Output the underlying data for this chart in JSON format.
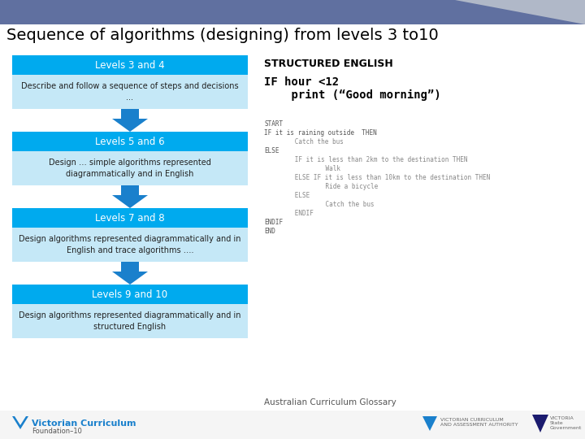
{
  "title": "Sequence of algorithms (designing) from levels 3 to10",
  "title_color": "#000000",
  "title_fontsize": 14,
  "header_bg": "#6070a0",
  "bg_color": "#ffffff",
  "levels": [
    {
      "header": "Levels 3 and 4",
      "header_bg": "#00aaee",
      "body_bg": "#c5e8f7",
      "body_text": "Describe and follow a sequence of steps and decisions\n..."
    },
    {
      "header": "Levels 5 and 6",
      "header_bg": "#00aaee",
      "body_bg": "#c5e8f7",
      "body_text": "Design … simple algorithms represented\ndiagrammatically and in English"
    },
    {
      "header": "Levels 7 and 8",
      "header_bg": "#00aaee",
      "body_bg": "#c5e8f7",
      "body_text": "Design algorithms represented diagrammatically and in\nEnglish and trace algorithms …."
    },
    {
      "header": "Levels 9 and 10",
      "header_bg": "#00aaee",
      "body_bg": "#c5e8f7",
      "body_text": "Design algorithms represented diagrammatically and in\nstructured English"
    }
  ],
  "arrow_color": "#1a80cc",
  "right_panel": {
    "heading": "STRUCTURED ENGLISH",
    "heading_fontsize": 9,
    "code_line1": "IF hour <12",
    "code_line2": "    print (“Good morning”)",
    "code_fontsize": 10,
    "pseudo_lines": [
      [
        "START",
        0
      ],
      [
        "IF it is raining outside  THEN",
        0
      ],
      [
        "      Catch the bus",
        1
      ],
      [
        "ELSE",
        0
      ],
      [
        "      IF it is less than 2km to the destination THEN",
        1
      ],
      [
        "            Walk",
        2
      ],
      [
        "      ELSE IF it is less than 10km to the destination THEN",
        1
      ],
      [
        "            Ride a bicycle",
        2
      ],
      [
        "      ELSE",
        1
      ],
      [
        "            Catch the bus",
        2
      ],
      [
        "      ENDIF",
        1
      ],
      [
        "ENDIF",
        0
      ],
      [
        "END",
        0
      ]
    ],
    "pseudo_fontsize": 5.5,
    "footer": "Australian Curriculum Glossary"
  },
  "footer_left_logo_text": "Victorian Curriculum",
  "footer_left_sub": "Foundation–10"
}
